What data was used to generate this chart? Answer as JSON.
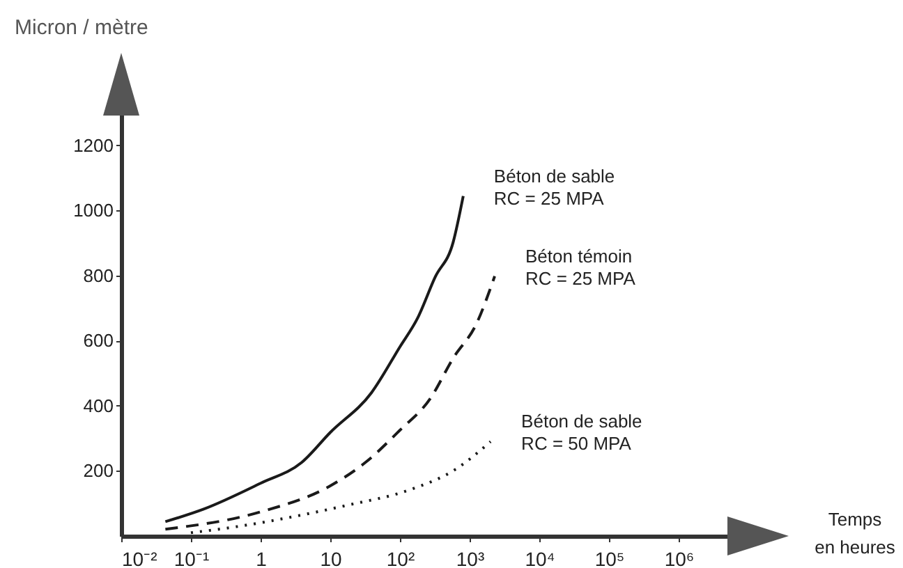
{
  "chart_data": {
    "type": "line",
    "xlabel": "Temps\nen heures",
    "ylabel": "Micron / mètre",
    "log": "x",
    "xlim": [
      0.01,
      10000000
    ],
    "ylim": [
      0,
      1300
    ],
    "xticks": [
      {
        "value": 0.01,
        "label": "10⁻²"
      },
      {
        "value": 0.1,
        "label": "10⁻¹"
      },
      1,
      10,
      {
        "value": 100,
        "label": "10²"
      },
      {
        "value": 1000,
        "label": "10³"
      },
      {
        "value": 10000,
        "label": "10⁴"
      },
      {
        "value": 100000,
        "label": "10⁵"
      },
      {
        "value": 1000000,
        "label": "10⁶"
      }
    ],
    "yticks": [
      200,
      400,
      600,
      800,
      1000,
      1200
    ],
    "grid": false,
    "legend": false,
    "marker": "none",
    "series": [
      {
        "name": "Béton de sable\nRC = 25 MPA",
        "color": "#1a1a1a",
        "line_style": "solid",
        "x": [
          0.043,
          0.15,
          1,
          3.9,
          10,
          39,
          100,
          180,
          320,
          580,
          810
        ],
        "values": [
          44,
          82,
          162,
          226,
          318,
          440,
          581,
          670,
          795,
          902,
          1044
        ]
      },
      {
        "name": "Béton témoin\nRC = 25 MPA",
        "color": "#1a1a1a",
        "line_style": "dashed",
        "x": [
          0.043,
          1,
          10,
          32,
          100,
          270,
          580,
          1260,
          2290
        ],
        "values": [
          21,
          74,
          154,
          226,
          325,
          421,
          546,
          653,
          798
        ]
      },
      {
        "name": "Béton de sable\nRC = 50 MPA",
        "color": "#1a1a1a",
        "line_style": "dotted",
        "x": [
          0.1,
          0.5,
          1.3,
          18,
          130,
          630,
          2000
        ],
        "values": [
          10,
          30,
          45,
          95,
          140,
          205,
          290
        ]
      }
    ]
  }
}
